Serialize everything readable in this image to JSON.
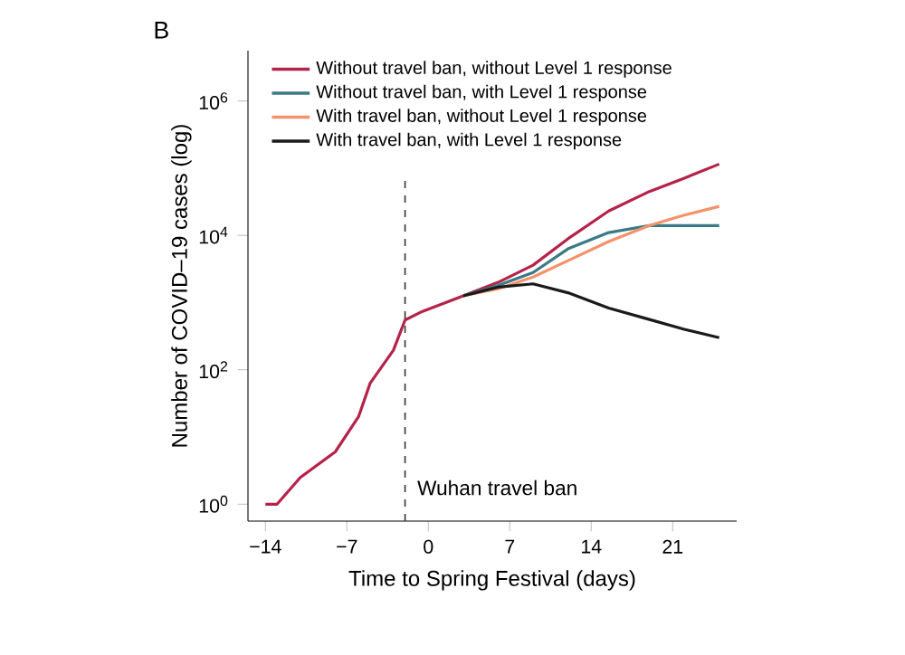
{
  "chart_data": {
    "type": "line",
    "title": "B",
    "xlabel": "Time to Spring Festival (days)",
    "ylabel": "Number of COVID–19 cases (log)",
    "log": "y",
    "legend": "top left",
    "line_style": "solid",
    "marker": "none",
    "grid": false,
    "xlim": [
      -15.5,
      26.5
    ],
    "ylim": [
      0.56,
      5600000
    ],
    "xticks": [
      {
        "value": -14,
        "label": "−14"
      },
      {
        "value": -7,
        "label": "−7"
      },
      0,
      7,
      14,
      21
    ],
    "yticks": [
      {
        "value": 1,
        "label": "10$^{0}$"
      },
      {
        "value": 100,
        "label": "10$^{2}$"
      },
      {
        "value": 10000,
        "label": "10$^{4}$"
      },
      {
        "value": 1000000,
        "label": "10$^{6}$"
      }
    ],
    "x": [
      -14,
      -13,
      -11,
      -8,
      -6,
      -5,
      -3,
      -2,
      -0.5,
      3,
      6,
      9,
      12,
      15.5,
      19,
      22,
      25
    ],
    "series": [
      {
        "name": "Without travel ban, without Level 1 response",
        "color": "#b5234a",
        "values": [
          1,
          1,
          2.5,
          6,
          20,
          63,
          195,
          550,
          740,
          1260,
          2000,
          3600,
          8900,
          23000,
          45000,
          71000,
          115000
        ]
      },
      {
        "name": "Without travel ban, with Level 1 response",
        "color": "#3a7a85",
        "values": [
          null,
          null,
          null,
          null,
          null,
          null,
          null,
          null,
          null,
          1260,
          1800,
          2800,
          6300,
          11000,
          14000,
          14000,
          14000
        ]
      },
      {
        "name": "With travel ban, without Level 1 response",
        "color": "#f4926a",
        "values": [
          null,
          null,
          null,
          null,
          null,
          null,
          null,
          null,
          null,
          1260,
          1600,
          2400,
          4200,
          8100,
          14000,
          20000,
          27000
        ]
      },
      {
        "name": "With travel ban, with Level 1 response",
        "color": "#1a1a1a",
        "values": [
          null,
          null,
          null,
          null,
          null,
          null,
          null,
          null,
          null,
          1260,
          1700,
          1900,
          1400,
          830,
          560,
          400,
          300
        ]
      }
    ],
    "ref_lines": [
      {
        "axis": "x",
        "value": -2,
        "label": "Wuhan travel ban",
        "color": "#333333",
        "line_style": "dashed"
      }
    ]
  }
}
